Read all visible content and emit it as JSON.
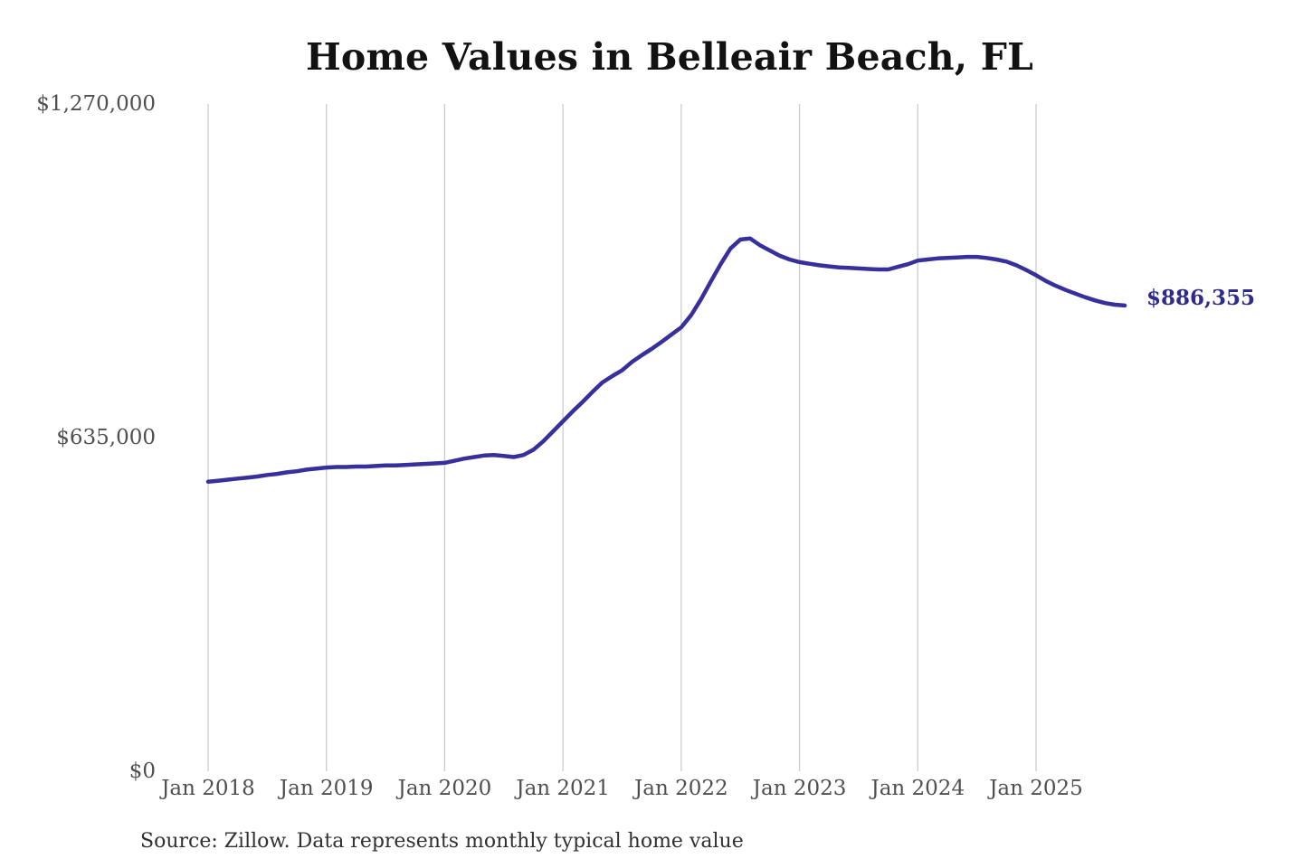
{
  "chart_data": {
    "type": "line",
    "title": "Home Values in Belleair Beach, FL",
    "source_note": "Source: Zillow. Data represents monthly typical home value",
    "legend": "none",
    "grid": "vertical-only",
    "axes": {
      "y": {
        "min": 0,
        "max": 1270000,
        "ticks": [
          {
            "value": 1270000,
            "label": "$1,270,000"
          },
          {
            "value": 635000,
            "label": "$635,000"
          },
          {
            "value": 0,
            "label": "$0"
          }
        ]
      },
      "x": {
        "ticks": [
          {
            "month_index": 0,
            "label": "Jan 2018"
          },
          {
            "month_index": 12,
            "label": "Jan 2019"
          },
          {
            "month_index": 24,
            "label": "Jan 2020"
          },
          {
            "month_index": 36,
            "label": "Jan 2021"
          },
          {
            "month_index": 48,
            "label": "Jan 2022"
          },
          {
            "month_index": 60,
            "label": "Jan 2023"
          },
          {
            "month_index": 72,
            "label": "Jan 2024"
          },
          {
            "month_index": 84,
            "label": "Jan 2025"
          }
        ]
      }
    },
    "series": [
      {
        "name": "Monthly typical home value",
        "start_month": "2018-01",
        "frequency": "monthly",
        "end_label": "$886,355",
        "end_value": 886355,
        "values": [
          551000,
          553000,
          555000,
          557000,
          559000,
          561000,
          564000,
          566000,
          569000,
          571000,
          574000,
          576000,
          578000,
          579000,
          579000,
          580000,
          580000,
          581000,
          582000,
          582000,
          583000,
          584000,
          585000,
          586000,
          587000,
          591000,
          595000,
          598000,
          601000,
          602000,
          600000,
          598000,
          602000,
          612000,
          628000,
          647000,
          666000,
          685000,
          703000,
          722000,
          740000,
          752000,
          763000,
          779000,
          792000,
          804000,
          817000,
          831000,
          845000,
          868000,
          898000,
          932000,
          965000,
          995000,
          1012000,
          1014000,
          1001000,
          991000,
          981000,
          974000,
          969000,
          966000,
          963000,
          961000,
          959000,
          958000,
          957000,
          956000,
          955000,
          955000,
          960000,
          965000,
          972000,
          974000,
          976000,
          977000,
          978000,
          979000,
          979000,
          977000,
          974000,
          970000,
          963000,
          954000,
          944000,
          933000,
          924000,
          916000,
          909000,
          902000,
          896000,
          891000,
          888000,
          886355
        ]
      }
    ],
    "colors": {
      "line": "#37309c",
      "end_label": "#2e2a8e",
      "grid": "#cccccc",
      "axis_labels": "#4f4f4f",
      "title": "#121212",
      "source": "#303030",
      "background": "#ffffff"
    }
  }
}
